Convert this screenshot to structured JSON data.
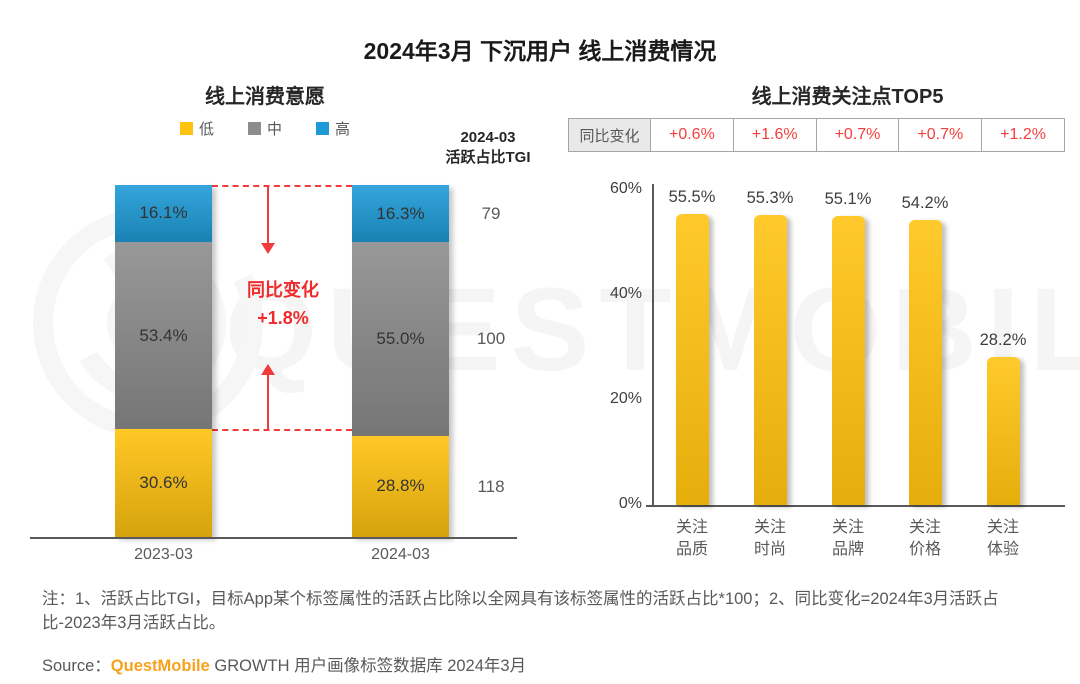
{
  "page_title": "2024年3月 下沉用户 线上消费情况",
  "colors": {
    "yellow": "#FFC20E",
    "gray": "#8C8C8C",
    "blue": "#1E9BD7",
    "red": "#F03B3B",
    "brand_orange": "#F7A21B",
    "axis": "#595959",
    "watermark": "#F5F5F5"
  },
  "watermark_text": "QUESTMOBILE",
  "chart_data": [
    {
      "type": "bar",
      "subtype": "stacked-percent",
      "title": "线上消费意愿",
      "categories": [
        "2023-03",
        "2024-03"
      ],
      "ylim": [
        0,
        100
      ],
      "legend_position": "top",
      "series": [
        {
          "name": "低",
          "color": "#FFC20E",
          "values": [
            30.6,
            28.8
          ]
        },
        {
          "name": "中",
          "color": "#8C8C8C",
          "values": [
            53.4,
            55.0
          ]
        },
        {
          "name": "高",
          "color": "#1E9BD7",
          "values": [
            16.1,
            16.3
          ]
        }
      ],
      "annotation": {
        "label": "同比变化",
        "value": "+1.8%"
      },
      "right_column": {
        "header_line1": "2024-03",
        "header_line2": "活跃占比TGI",
        "values": [
          "79",
          "100",
          "118"
        ]
      }
    },
    {
      "type": "bar",
      "title": "线上消费关注点TOP5",
      "categories": [
        "关注\n品质",
        "关注\n时尚",
        "关注\n品牌",
        "关注\n价格",
        "关注\n体验"
      ],
      "values": [
        55.5,
        55.3,
        55.1,
        54.2,
        28.2
      ],
      "value_labels": [
        "55.5%",
        "55.3%",
        "55.1%",
        "54.2%",
        "28.2%"
      ],
      "bar_color": "#FFC20E",
      "ylim": [
        0,
        60
      ],
      "yticks": [
        "60%",
        "40%",
        "20%",
        "0%"
      ],
      "grid": false,
      "yoy_row": {
        "label": "同比变化",
        "values": [
          "+0.6%",
          "+1.6%",
          "+0.7%",
          "+0.7%",
          "+1.2%"
        ]
      }
    }
  ],
  "notes": "注：1、活跃占比TGI，目标App某个标签属性的活跃占比除以全网具有该标签属性的活跃占比*100；2、同比变化=2024年3月活跃占比-2023年3月活跃占比。",
  "source": {
    "prefix": "Source：",
    "brand": "QuestMobile",
    "suffix": " GROWTH 用户画像标签数据库 2024年3月"
  }
}
